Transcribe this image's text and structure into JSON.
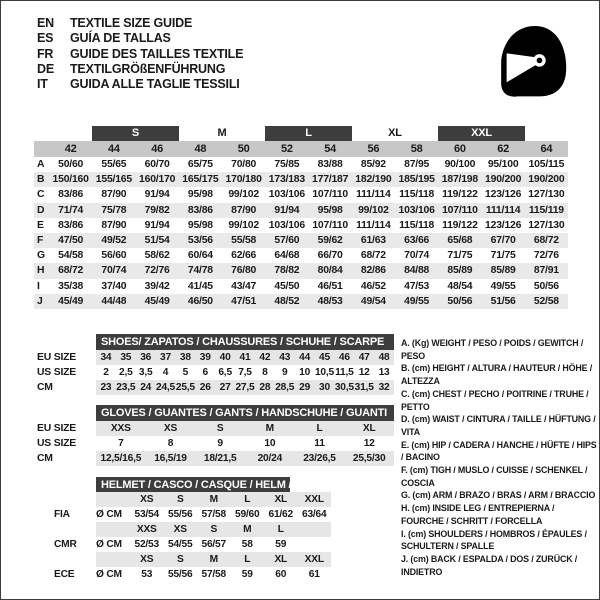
{
  "header": {
    "languages": [
      {
        "code": "EN",
        "title": "TEXTILE SIZE GUIDE"
      },
      {
        "code": "ES",
        "title": "GUÍA DE TALLAS"
      },
      {
        "code": "FR",
        "title": "GUIDE DES TAILLES TEXTILE"
      },
      {
        "code": "DE",
        "title": "TEXTILGRÖßENFÜHRUNG"
      },
      {
        "code": "IT",
        "title": "GUIDA ALLE TAGLIE TESSILI"
      }
    ]
  },
  "icons": {
    "helmet": "racing-helmet-icon"
  },
  "colors": {
    "dark_bar": "#3d3d3d",
    "number_band": "#c7c7c7",
    "stripe": "#e8e8e8",
    "text": "#1a1a1a"
  },
  "main_table": {
    "size_bands": [
      {
        "label": "S",
        "dark": true
      },
      {
        "label": "M",
        "dark": false
      },
      {
        "label": "L",
        "dark": true
      },
      {
        "label": "XL",
        "dark": false
      },
      {
        "label": "XXL",
        "dark": true
      }
    ],
    "columns": [
      "42",
      "44",
      "46",
      "48",
      "50",
      "52",
      "54",
      "56",
      "58",
      "60",
      "62",
      "64"
    ],
    "rows": [
      {
        "letter": "A",
        "values": [
          "50/60",
          "55/65",
          "60/70",
          "65/75",
          "70/80",
          "75/85",
          "83/88",
          "85/92",
          "87/95",
          "90/100",
          "95/100",
          "105/115"
        ]
      },
      {
        "letter": "B",
        "values": [
          "150/160",
          "155/165",
          "160/170",
          "165/175",
          "170/180",
          "173/183",
          "177/187",
          "182/190",
          "185/195",
          "187/198",
          "190/200",
          "190/200"
        ]
      },
      {
        "letter": "C",
        "values": [
          "83/86",
          "87/90",
          "91/94",
          "95/98",
          "99/102",
          "103/106",
          "107/110",
          "111/114",
          "115/118",
          "119/122",
          "123/126",
          "127/130"
        ]
      },
      {
        "letter": "D",
        "values": [
          "71/74",
          "75/78",
          "79/82",
          "83/86",
          "87/90",
          "91/94",
          "95/98",
          "99/102",
          "103/106",
          "107/110",
          "111/114",
          "115/119"
        ]
      },
      {
        "letter": "E",
        "values": [
          "83/86",
          "87/90",
          "91/94",
          "95/98",
          "99/102",
          "103/106",
          "107/110",
          "111/114",
          "115/118",
          "119/122",
          "123/126",
          "127/130"
        ]
      },
      {
        "letter": "F",
        "values": [
          "47/50",
          "49/52",
          "51/54",
          "53/56",
          "55/58",
          "57/60",
          "59/62",
          "61/63",
          "63/66",
          "65/68",
          "67/70",
          "68/72"
        ]
      },
      {
        "letter": "G",
        "values": [
          "54/58",
          "56/60",
          "58/62",
          "60/64",
          "62/66",
          "64/68",
          "66/70",
          "68/72",
          "70/74",
          "71/75",
          "71/75",
          "72/76"
        ]
      },
      {
        "letter": "H",
        "values": [
          "68/72",
          "70/74",
          "72/76",
          "74/78",
          "76/80",
          "78/82",
          "80/84",
          "82/86",
          "84/88",
          "85/89",
          "85/89",
          "87/91"
        ]
      },
      {
        "letter": "I",
        "values": [
          "35/38",
          "37/40",
          "39/42",
          "41/45",
          "43/47",
          "45/50",
          "46/51",
          "46/52",
          "47/53",
          "48/54",
          "49/55",
          "50/56"
        ]
      },
      {
        "letter": "J",
        "values": [
          "45/49",
          "44/48",
          "45/49",
          "46/50",
          "47/51",
          "48/52",
          "48/53",
          "49/54",
          "49/55",
          "50/56",
          "51/56",
          "52/58"
        ]
      }
    ]
  },
  "shoes_table": {
    "title": "SHOES/ ZAPATOS / CHAUSSURES / SCHUHE / SCARPE",
    "rows": [
      {
        "label": "EU SIZE",
        "stripe": true,
        "values": [
          "34",
          "35",
          "36",
          "37",
          "38",
          "39",
          "40",
          "41",
          "42",
          "43",
          "44",
          "45",
          "46",
          "47",
          "48"
        ]
      },
      {
        "label": "US SIZE",
        "stripe": false,
        "values": [
          "2",
          "2,5",
          "3,5",
          "4",
          "5",
          "6",
          "6,5",
          "7,5",
          "8",
          "9",
          "10",
          "10,5",
          "11,5",
          "12",
          "13"
        ]
      },
      {
        "label": "CM",
        "stripe": true,
        "values": [
          "23",
          "23,5",
          "24",
          "24,5",
          "25,5",
          "26",
          "27",
          "27,5",
          "28",
          "28,5",
          "29",
          "30",
          "30,5",
          "31,5",
          "32"
        ]
      }
    ]
  },
  "gloves_table": {
    "title": "GLOVES / GUANTES / GANTS / HANDSCHUHE / GUANTI",
    "rows": [
      {
        "label": "EU SIZE",
        "stripe": true,
        "values": [
          "XXS",
          "XS",
          "S",
          "M",
          "L",
          "XL"
        ]
      },
      {
        "label": "US SIZE",
        "stripe": false,
        "values": [
          "7",
          "8",
          "9",
          "10",
          "11",
          "12"
        ]
      },
      {
        "label": "CM",
        "stripe": true,
        "values": [
          "12,5/16,5",
          "16,5/19",
          "18/21,5",
          "20/24",
          "23/26,5",
          "25,5/30"
        ]
      }
    ]
  },
  "helmet_table": {
    "title": "HELMET / CASCO / CASQUE / HELM / CASCO",
    "groups": [
      {
        "label": "FIA",
        "unit": "Ø CM",
        "sizes": [
          "XS",
          "S",
          "M",
          "L",
          "XL",
          "XXL"
        ],
        "values": [
          "53/54",
          "55/56",
          "57/58",
          "59/60",
          "61/62",
          "63/64"
        ]
      },
      {
        "label": "CMR",
        "unit": "Ø CM",
        "sizes": [
          "XXS",
          "XS",
          "S",
          "M",
          "L",
          ""
        ],
        "values": [
          "52/53",
          "54/55",
          "56/57",
          "58",
          "59",
          ""
        ]
      },
      {
        "label": "ECE",
        "unit": "Ø CM",
        "sizes": [
          "XS",
          "S",
          "M",
          "L",
          "XL",
          "XXL"
        ],
        "values": [
          "53",
          "55/56",
          "57/58",
          "59",
          "60",
          "61"
        ]
      }
    ]
  },
  "legend": {
    "items": [
      "A. (Kg) WEIGHT / PESO / POIDS / GEWITCH / PESO",
      "B. (cm) HEIGHT / ALTURA / HAUTEUR / HÖHE / ALTEZZA",
      "C. (cm) CHEST / PECHO / POITRINE / TRUHE / PETTO",
      "D. (cm) WAIST / CINTURA / TAILLE / HÜFTUNG / VITA",
      "E. (cm) HIP / CADERA / HANCHE / HÜFTE / HIPS /  BACINO",
      "F.  (cm) TIGH / MUSLO / CUISSE / SCHENKEL / COSCIA",
      "G. (cm) ARM  / BRAZO / BRAS / ARM / BRACCIO",
      "H. (cm) INSIDE LEG / ENTREPIERNA / FOURCHE / SCHRITT / FORCELLA",
      "I.  (cm) SHOULDERS / HOMBROS / ÉPAULES / SCHULTERN / SPALLE",
      "J. (cm) BACK / ESPALDA / DOS / ZURÜCK / INDIETRO"
    ]
  }
}
